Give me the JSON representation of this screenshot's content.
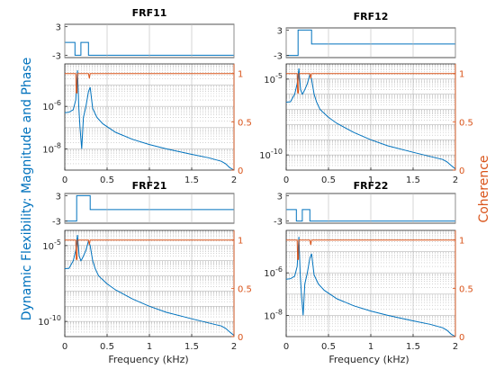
{
  "figure": {
    "ylabel_left": "Dynamic Flexibility: Magnitude and Phase",
    "ylabel_right": "Coherence",
    "xlabel": "Frequency (kHz)",
    "colors": {
      "magnitude": "#0072BD",
      "phase": "#0072BD",
      "coherence": "#D95319",
      "axis": "#262626",
      "grid": "#b8b8b8"
    }
  },
  "chart_data": [
    {
      "type": "line",
      "title": "FRF11",
      "xlabel": "",
      "xlim": [
        0,
        2
      ],
      "x_ticks": [
        "0",
        "0.5",
        "1",
        "1.5",
        "2"
      ],
      "phase": {
        "ylim": [
          -3.5,
          3.5
        ],
        "y_ticks": [
          "3",
          "-3"
        ],
        "x": [
          0,
          0.12,
          0.12,
          0.19,
          0.19,
          0.28,
          0.28,
          2
        ],
        "values": [
          -0.3,
          -0.3,
          -3,
          -3,
          -0.3,
          -0.3,
          -3,
          -3
        ]
      },
      "magnitude": {
        "yscale": "log",
        "ylim": [
          1e-09,
          0.0001
        ],
        "y_ticks": [
          "10^-6",
          "10^-8"
        ],
        "x": [
          0,
          0.05,
          0.1,
          0.13,
          0.15,
          0.165,
          0.18,
          0.2,
          0.22,
          0.25,
          0.28,
          0.3,
          0.33,
          0.38,
          0.45,
          0.6,
          0.8,
          1.0,
          1.2,
          1.5,
          1.7,
          1.85,
          1.9,
          1.95,
          2.0
        ],
        "values": [
          5e-07,
          5.3e-07,
          7e-07,
          2e-06,
          5e-05,
          1e-06,
          1e-07,
          1e-08,
          3e-07,
          1e-06,
          5e-06,
          8e-06,
          8e-07,
          3e-07,
          1.5e-07,
          6e-08,
          2.8e-08,
          1.6e-08,
          1e-08,
          5.5e-09,
          3.8e-09,
          2.6e-09,
          2e-09,
          1.3e-09,
          1e-09
        ]
      },
      "coherence": {
        "ylim": [
          0,
          1.1
        ],
        "y_ticks": [
          "0",
          "0.5",
          "1"
        ],
        "x": [
          0,
          0.13,
          0.135,
          0.145,
          0.15,
          0.28,
          0.29,
          0.3,
          2
        ],
        "values": [
          1,
          1,
          0.8,
          0.8,
          1,
          1,
          0.95,
          1,
          1
        ]
      }
    },
    {
      "type": "line",
      "title": "FRF12",
      "xlabel": "",
      "xlim": [
        0,
        2
      ],
      "x_ticks": [
        "0",
        "0.5",
        "1",
        "1.5",
        "2"
      ],
      "phase": {
        "ylim": [
          -3.5,
          3.5
        ],
        "y_ticks": [
          "3",
          "-3"
        ],
        "x": [
          0,
          0.14,
          0.14,
          0.3,
          0.3,
          2
        ],
        "values": [
          -3,
          -3,
          3,
          3,
          -0.3,
          -0.3
        ]
      },
      "magnitude": {
        "yscale": "log",
        "ylim": [
          1e-11,
          0.0001
        ],
        "y_ticks": [
          "10^-5",
          "10^-10"
        ],
        "x": [
          0,
          0.05,
          0.1,
          0.13,
          0.15,
          0.16,
          0.17,
          0.19,
          0.2,
          0.22,
          0.25,
          0.28,
          0.3,
          0.33,
          0.36,
          0.4,
          0.5,
          0.6,
          0.8,
          1.0,
          1.2,
          1.5,
          1.7,
          1.85,
          1.9,
          1.95,
          2.0
        ],
        "values": [
          3e-07,
          3.2e-07,
          1e-06,
          5e-06,
          5e-05,
          1e-05,
          2e-06,
          1e-06,
          1.2e-06,
          2e-06,
          5e-06,
          2e-05,
          1e-05,
          1e-06,
          3e-07,
          1e-07,
          3e-08,
          1.2e-08,
          3e-09,
          1e-09,
          4e-10,
          1.5e-10,
          8e-11,
          5e-11,
          3.5e-11,
          2e-11,
          1.2e-11
        ]
      },
      "coherence": {
        "ylim": [
          0,
          1.1
        ],
        "y_ticks": [
          "0",
          "0.5",
          "1"
        ],
        "x": [
          0,
          0.13,
          0.135,
          0.145,
          0.15,
          0.28,
          0.29,
          0.3,
          2
        ],
        "values": [
          1,
          1,
          0.8,
          0.8,
          1,
          1,
          0.95,
          1,
          1
        ]
      }
    },
    {
      "type": "line",
      "title": "FRF21",
      "xlabel": "",
      "xlim": [
        0,
        2
      ],
      "x_ticks": [
        "0",
        "0.5",
        "1",
        "1.5",
        "2"
      ],
      "phase": {
        "ylim": [
          -3.5,
          3.5
        ],
        "y_ticks": [
          "3",
          "-3"
        ],
        "x": [
          0,
          0.14,
          0.14,
          0.3,
          0.3,
          2
        ],
        "values": [
          -3,
          -3,
          3,
          3,
          -0.3,
          -0.3
        ]
      },
      "magnitude": {
        "yscale": "log",
        "ylim": [
          1e-11,
          0.0001
        ],
        "y_ticks": [
          "10^-5",
          "10^-10"
        ],
        "x": [
          0,
          0.05,
          0.1,
          0.13,
          0.15,
          0.16,
          0.17,
          0.19,
          0.2,
          0.22,
          0.25,
          0.28,
          0.3,
          0.33,
          0.36,
          0.4,
          0.5,
          0.6,
          0.8,
          1.0,
          1.2,
          1.5,
          1.7,
          1.85,
          1.9,
          1.95,
          2.0
        ],
        "values": [
          3e-07,
          3.2e-07,
          1e-06,
          5e-06,
          5e-05,
          1e-05,
          2e-06,
          1e-06,
          1.2e-06,
          2e-06,
          5e-06,
          2e-05,
          1e-05,
          1e-06,
          3e-07,
          1e-07,
          3e-08,
          1.2e-08,
          3e-09,
          1e-09,
          4e-10,
          1.5e-10,
          8e-11,
          5e-11,
          3.5e-11,
          2e-11,
          1.2e-11
        ]
      },
      "coherence": {
        "ylim": [
          0,
          1.1
        ],
        "y_ticks": [
          "0",
          "0.5",
          "1"
        ],
        "x": [
          0,
          0.13,
          0.135,
          0.145,
          0.15,
          0.28,
          0.29,
          0.3,
          2
        ],
        "values": [
          1,
          1,
          0.8,
          0.8,
          1,
          1,
          0.95,
          1,
          1
        ]
      }
    },
    {
      "type": "line",
      "title": "FRF22",
      "xlabel": "Frequency (kHz)",
      "xlim": [
        0,
        2
      ],
      "x_ticks": [
        "0",
        "0.5",
        "1",
        "1.5",
        "2"
      ],
      "phase": {
        "ylim": [
          -3.5,
          3.5
        ],
        "y_ticks": [
          "3",
          "-3"
        ],
        "x": [
          0,
          0.12,
          0.12,
          0.19,
          0.19,
          0.28,
          0.28,
          2
        ],
        "values": [
          -0.3,
          -0.3,
          -3,
          -3,
          -0.3,
          -0.3,
          -3,
          -3
        ]
      },
      "magnitude": {
        "yscale": "log",
        "ylim": [
          1e-09,
          0.0001
        ],
        "y_ticks": [
          "10^-6",
          "10^-8"
        ],
        "x": [
          0,
          0.05,
          0.1,
          0.13,
          0.15,
          0.165,
          0.18,
          0.2,
          0.22,
          0.25,
          0.28,
          0.3,
          0.33,
          0.38,
          0.45,
          0.6,
          0.8,
          1.0,
          1.2,
          1.5,
          1.7,
          1.85,
          1.9,
          1.95,
          2.0
        ],
        "values": [
          5e-07,
          5.3e-07,
          7e-07,
          2e-06,
          5e-05,
          1e-06,
          1e-07,
          1e-08,
          3e-07,
          1e-06,
          5e-06,
          8e-06,
          8e-07,
          3e-07,
          1.5e-07,
          6e-08,
          2.8e-08,
          1.6e-08,
          1e-08,
          5.5e-09,
          3.8e-09,
          2.6e-09,
          2e-09,
          1.3e-09,
          1e-09
        ]
      },
      "coherence": {
        "ylim": [
          0,
          1.1
        ],
        "y_ticks": [
          "0",
          "0.5",
          "1"
        ],
        "x": [
          0,
          0.13,
          0.135,
          0.145,
          0.15,
          0.28,
          0.29,
          0.3,
          2
        ],
        "values": [
          1,
          1,
          0.8,
          0.8,
          1,
          1,
          0.95,
          1,
          1
        ]
      }
    }
  ]
}
